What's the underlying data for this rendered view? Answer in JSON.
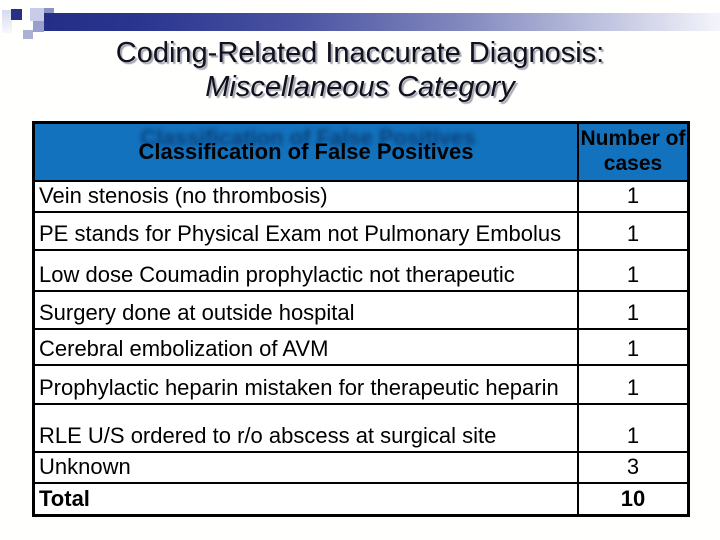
{
  "slide": {
    "title_line1": "Coding-Related Inaccurate Diagnosis:",
    "title_line2": "Miscellaneous Category"
  },
  "table": {
    "header": {
      "col1": "Classification of False Positives",
      "col2": "Number of cases"
    },
    "rows": [
      {
        "label": "Vein stenosis (no thrombosis)",
        "count": "1"
      },
      {
        "label": "PE stands for Physical Exam not Pulmonary Embolus",
        "count": "1"
      },
      {
        "label": "Low dose Coumadin prophylactic not therapeutic",
        "count": "1"
      },
      {
        "label": "Surgery done at outside hospital",
        "count": "1"
      },
      {
        "label": "Cerebral embolization of AVM",
        "count": "1"
      },
      {
        "label": "Prophylactic heparin mistaken for therapeutic heparin",
        "count": "1"
      },
      {
        "label": "RLE U/S ordered to r/o abscess at surgical site",
        "count": "1"
      },
      {
        "label": "Unknown",
        "count": "3"
      }
    ],
    "total": {
      "label": "Total",
      "count": "10"
    }
  },
  "colors": {
    "header_blue": "#1372bd",
    "decor_navy": "#242e85",
    "grid_border": "#000000",
    "title_text": "#10101e"
  }
}
